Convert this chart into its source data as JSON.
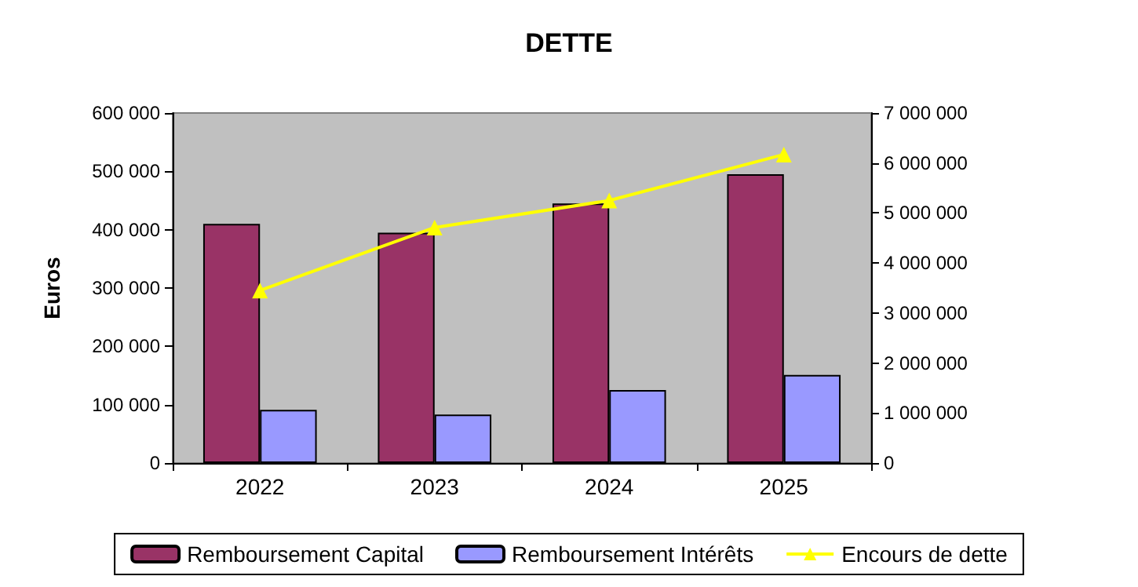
{
  "chart_data": {
    "type": "bar",
    "title": "DETTE",
    "ylabel": "Euros",
    "categories": [
      "2022",
      "2023",
      "2024",
      "2025"
    ],
    "series": [
      {
        "name": "Remboursement Capital",
        "color": "#993366",
        "values": [
          410000,
          395000,
          445000,
          495000
        ]
      },
      {
        "name": "Remboursement Intérêts",
        "color": "#9999ff",
        "values": [
          91000,
          83000,
          125000,
          151000
        ]
      },
      {
        "name": "Encours de dette",
        "type": "line",
        "axis": "y2",
        "color": "#ffff00",
        "marker": "triangle",
        "values": [
          3450000,
          4710000,
          5250000,
          6170000
        ]
      }
    ],
    "ylim": [
      0,
      600000
    ],
    "yticks": [
      0,
      100000,
      200000,
      300000,
      400000,
      500000,
      600000
    ],
    "y2lim": [
      0,
      7000000
    ],
    "y2ticks": [
      0,
      1000000,
      2000000,
      3000000,
      4000000,
      5000000,
      6000000,
      7000000
    ],
    "grid": false,
    "legend": "bottom"
  }
}
